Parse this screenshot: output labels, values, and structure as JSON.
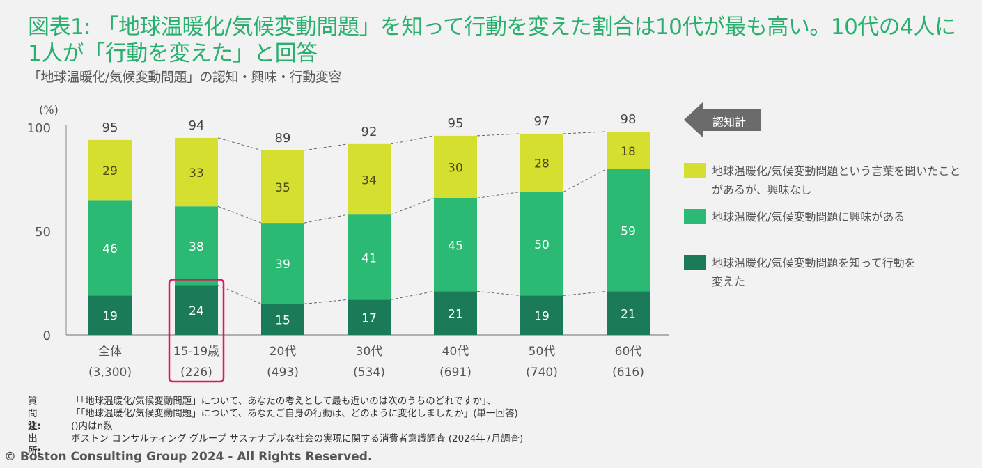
{
  "header": {
    "title": "図表1: 「地球温暖化/気候変動問題」を知って行動を変えた割合は10代が最も高い。10代の4人に1人が「行動を変えた」と回答",
    "subtitle": "「地球温暖化/気候変動問題」の認知・興味・行動変容"
  },
  "colors": {
    "title": "#29b06e",
    "no_interest": "#d5df2f",
    "interested": "#2aba74",
    "changed_behavior": "#1b7a57",
    "highlight_box": "#d81b60",
    "arrow": "#6b6b6b"
  },
  "legend": {
    "arrow_label": "認知計",
    "items": [
      {
        "label": "地球温暖化/気候変動問題という言葉を聞いたことがあるが、興味なし",
        "color": "#d5df2f"
      },
      {
        "label": "地球温暖化/気候変動問題に興味がある",
        "color": "#2aba74"
      },
      {
        "label": "地球温暖化/気候変動問題を知って行動を変えた",
        "color": "#1b7a57"
      }
    ]
  },
  "chart_data": {
    "type": "bar",
    "stacked": true,
    "title": "「地球温暖化/気候変動問題」の認知・興味・行動変容",
    "ylabel": "(%)",
    "ylim": [
      0,
      100
    ],
    "yticks": [
      0,
      50,
      100
    ],
    "categories": [
      "全体",
      "15-19歳",
      "20代",
      "30代",
      "40代",
      "50代",
      "60代"
    ],
    "category_n": [
      "(3,300)",
      "(226)",
      "(493)",
      "(534)",
      "(691)",
      "(740)",
      "(616)"
    ],
    "series": [
      {
        "name": "地球温暖化/気候変動問題を知って行動を変えた",
        "values": [
          19,
          24,
          15,
          17,
          21,
          19,
          21
        ]
      },
      {
        "name": "地球温暖化/気候変動問題に興味がある",
        "values": [
          46,
          38,
          39,
          41,
          45,
          50,
          59
        ]
      },
      {
        "name": "地球温暖化/気候変動問題という言葉を聞いたことがあるが、興味なし",
        "values": [
          29,
          33,
          35,
          34,
          30,
          28,
          18
        ]
      }
    ],
    "totals": [
      95,
      94,
      89,
      92,
      95,
      97,
      98
    ],
    "totals_label": "認知計",
    "highlighted_category": "15-19歳",
    "connector_lines": "dashed, from 15-19歳 onward",
    "legend_position": "right"
  },
  "notes": {
    "question_label": "質問文:",
    "question_line1": "「「地球温暖化/気候変動問題」について、あなたの考えとして最も近いのは次のうちのどれですか」、",
    "question_line2": "「「地球温暖化/気候変動問題」について、あなたご自身の行動は、どのように変化しましたか」(単一回答)",
    "note_label": "注:",
    "note_text": "()内はn数",
    "source_label": "出所:",
    "source_text": "ボストン コンサルティング グループ サステナブルな社会の実現に関する消費者意識調査 (2024年7月調査)"
  },
  "footer": {
    "copyright": "© Boston Consulting Group 2024 - All Rights Reserved."
  }
}
